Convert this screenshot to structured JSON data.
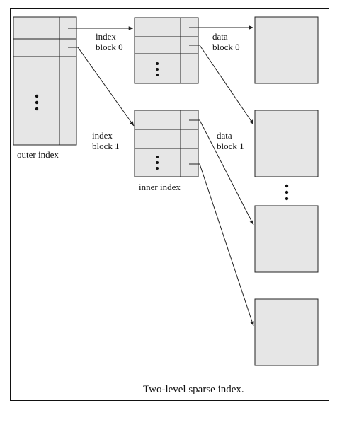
{
  "labels": {
    "outer_index": "outer index",
    "index_block_0": [
      "index",
      "block 0"
    ],
    "index_block_1": [
      "index",
      "block 1"
    ],
    "inner_index": "inner index",
    "data_block_0": [
      "data",
      "block 0"
    ],
    "data_block_1": [
      "data",
      "block 1"
    ]
  },
  "caption": "Two-level sparse index.",
  "colors": {
    "block_fill": "#e6e6e6",
    "stroke": "#222222",
    "background": "#ffffff"
  }
}
